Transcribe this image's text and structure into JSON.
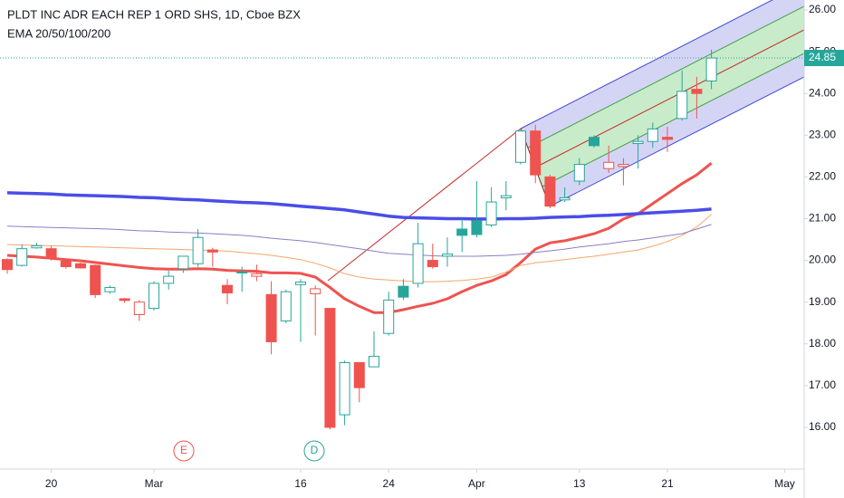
{
  "chart_data": {
    "type": "candlestick",
    "title": "PLDT INC ADR EACH REP 1 ORD SHS, 1D, Cboe BZX",
    "subtitle": "EMA 20/50/100/200",
    "categories": [
      null,
      null,
      null,
      "20",
      null,
      null,
      null,
      null,
      null,
      null,
      "Mar",
      null,
      null,
      null,
      null,
      null,
      null,
      null,
      null,
      null,
      "16",
      null,
      null,
      null,
      null,
      null,
      "24",
      null,
      null,
      null,
      null,
      null,
      "Apr",
      null,
      null,
      null,
      null,
      null,
      null,
      "13",
      null,
      null,
      null,
      null,
      null,
      "21",
      null,
      null,
      null,
      null,
      null,
      null,
      null,
      "May"
    ],
    "open": [
      20.02,
      19.88,
      20.3,
      20.28,
      19.98,
      19.92,
      19.88,
      19.25,
      19.08,
      18.7,
      18.85,
      19.45,
      19.8,
      19.92,
      20.25,
      19.4,
      19.7,
      19.62,
      19.18,
      18.55,
      19.42,
      19.2,
      18.85,
      16.3,
      17.55,
      17.45,
      18.25,
      19.38,
      19.45,
      20.0,
      20.1,
      20.75,
      20.95,
      20.85,
      21.5,
      22.35,
      23.1,
      22.0,
      21.45,
      21.9,
      22.95,
      22.2,
      22.25,
      22.8,
      22.85,
      22.95,
      23.4,
      24.1,
      24.3,
      null,
      null,
      null,
      null,
      null
    ],
    "high": [
      20.05,
      20.38,
      20.42,
      20.35,
      20.0,
      19.95,
      19.9,
      19.4,
      19.1,
      19.05,
      19.5,
      19.75,
      20.1,
      20.75,
      20.3,
      19.55,
      19.85,
      19.9,
      19.5,
      19.3,
      19.55,
      19.4,
      18.85,
      17.6,
      17.5,
      18.3,
      19.25,
      19.55,
      20.9,
      20.4,
      20.55,
      21.0,
      21.9,
      21.75,
      21.9,
      23.1,
      23.25,
      22.05,
      21.75,
      22.45,
      23.0,
      22.75,
      22.45,
      23.0,
      23.3,
      23.2,
      24.55,
      24.4,
      25.05,
      null,
      null,
      null,
      null,
      null
    ],
    "low": [
      19.68,
      19.85,
      20.28,
      20.0,
      19.8,
      19.8,
      19.1,
      19.2,
      18.98,
      18.55,
      18.8,
      19.3,
      19.7,
      19.85,
      19.85,
      18.95,
      19.25,
      19.5,
      17.75,
      18.5,
      18.05,
      18.2,
      15.95,
      16.05,
      16.6,
      17.45,
      18.2,
      19.05,
      19.35,
      19.8,
      19.85,
      20.2,
      20.55,
      20.8,
      21.2,
      22.3,
      21.85,
      21.25,
      21.4,
      21.8,
      22.7,
      22.1,
      21.8,
      22.2,
      22.7,
      22.6,
      23.35,
      23.4,
      24.1,
      null,
      null,
      null,
      null,
      null
    ],
    "close": [
      19.78,
      20.28,
      20.35,
      20.05,
      19.85,
      19.82,
      19.18,
      19.35,
      19.04,
      19.0,
      19.45,
      19.62,
      20.1,
      20.55,
      20.2,
      19.22,
      19.72,
      19.68,
      18.05,
      19.25,
      19.48,
      19.32,
      16.0,
      17.55,
      16.95,
      17.7,
      19.05,
      19.12,
      20.4,
      19.85,
      20.15,
      20.6,
      20.62,
      21.4,
      21.55,
      23.1,
      22.05,
      21.3,
      21.5,
      22.3,
      22.75,
      22.35,
      22.3,
      22.85,
      23.15,
      22.9,
      24.05,
      24.0,
      24.85,
      null,
      null,
      null,
      null,
      null
    ],
    "up_color": "#26a69a",
    "down_color": "#ef5350",
    "overlays": [
      {
        "color": "#ef5350",
        "values": [
          20.12,
          20.1,
          20.08,
          20.05,
          20.02,
          19.99,
          19.95,
          19.91,
          19.87,
          19.83,
          19.8,
          19.79,
          19.79,
          19.8,
          19.79,
          19.76,
          19.75,
          19.74,
          19.7,
          19.7,
          19.69,
          19.6,
          19.35,
          19.08,
          18.9,
          18.75,
          18.75,
          18.82,
          18.9,
          18.97,
          19.08,
          19.25,
          19.4,
          19.51,
          19.66,
          19.95,
          20.27,
          20.42,
          20.47,
          20.55,
          20.64,
          20.77,
          20.99,
          21.12,
          21.36,
          21.6,
          21.84,
          22.05,
          22.33,
          null,
          null,
          null,
          null,
          null
        ]
      },
      {
        "color": "#f7a56b",
        "values": [
          20.38,
          20.37,
          20.36,
          20.35,
          20.34,
          20.33,
          20.32,
          20.31,
          20.3,
          20.29,
          20.28,
          20.27,
          20.26,
          20.25,
          20.24,
          20.22,
          20.19,
          20.16,
          20.12,
          20.07,
          20.02,
          19.93,
          19.82,
          19.68,
          19.6,
          19.55,
          19.53,
          19.51,
          19.49,
          19.49,
          19.5,
          19.52,
          19.55,
          19.6,
          19.72,
          19.88,
          19.94,
          19.98,
          20.02,
          20.06,
          20.1,
          20.15,
          20.2,
          20.25,
          20.34,
          20.45,
          20.6,
          20.8,
          21.1,
          null,
          null,
          null,
          null,
          null
        ]
      },
      {
        "color": "#8e7cc3",
        "values": [
          20.82,
          20.81,
          20.8,
          20.79,
          20.78,
          20.77,
          20.76,
          20.75,
          20.73,
          20.71,
          20.7,
          20.68,
          20.67,
          20.66,
          20.64,
          20.62,
          20.6,
          20.57,
          20.53,
          20.5,
          20.47,
          20.43,
          20.38,
          20.33,
          20.28,
          20.22,
          20.17,
          20.15,
          20.13,
          20.11,
          20.1,
          20.1,
          20.1,
          20.11,
          20.12,
          20.15,
          20.19,
          20.23,
          20.27,
          20.32,
          20.36,
          20.4,
          20.45,
          20.49,
          20.54,
          20.59,
          20.64,
          20.75,
          20.86,
          null,
          null,
          null,
          null,
          null
        ]
      },
      {
        "color": "#4a4de8",
        "values": [
          21.62,
          21.61,
          21.6,
          21.59,
          21.57,
          21.56,
          21.55,
          21.54,
          21.53,
          21.51,
          21.5,
          21.48,
          21.46,
          21.45,
          21.43,
          21.41,
          21.39,
          21.38,
          21.36,
          21.33,
          21.3,
          21.27,
          21.24,
          21.21,
          21.16,
          21.11,
          21.06,
          21.03,
          21.02,
          21.01,
          21.0,
          21.0,
          20.99,
          20.99,
          21.0,
          21.0,
          21.01,
          21.03,
          21.04,
          21.05,
          21.07,
          21.08,
          21.1,
          21.12,
          21.14,
          21.16,
          21.18,
          21.2,
          21.23,
          null,
          null,
          null,
          null,
          null
        ]
      }
    ],
    "events": [
      "E",
      "D"
    ],
    "ylim": [
      15.0,
      26.24
    ],
    "yticks": [
      {
        "value": 16,
        "label": "16.00"
      },
      {
        "value": 17,
        "label": "17.00"
      },
      {
        "value": 18,
        "label": "18.00"
      },
      {
        "value": 19,
        "label": "19.00"
      },
      {
        "value": 20,
        "label": "20.00"
      },
      {
        "value": 21,
        "label": "21.00"
      },
      {
        "value": 22,
        "label": "22.00"
      },
      {
        "value": 23,
        "label": "23.00"
      },
      {
        "value": 24,
        "label": "24.00"
      },
      {
        "value": 25,
        "label": "25.00"
      },
      {
        "value": 26,
        "label": "26.00"
      }
    ]
  }
}
